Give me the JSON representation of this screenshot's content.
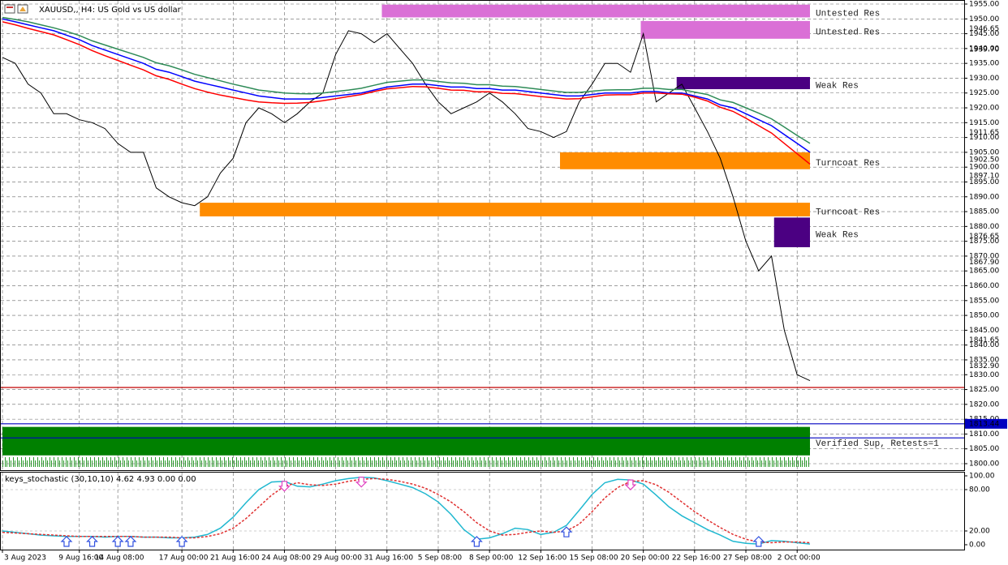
{
  "chart_data": [
    {
      "type": "line",
      "title": "XAUUSD,, H4:  US Gold vs US dollar",
      "categories": [
        "3 Aug 2023",
        null,
        null,
        null,
        null,
        null,
        "9 Aug 16:00",
        null,
        null,
        "14 Aug 08:00",
        null,
        null,
        null,
        null,
        "17 Aug 00:00",
        null,
        null,
        null,
        "21 Aug 16:00",
        null,
        null,
        null,
        "24 Aug 08:00",
        null,
        null,
        null,
        "29 Aug 00:00",
        null,
        null,
        null,
        "31 Aug 16:00",
        null,
        null,
        null,
        "5 Sep 08:00",
        null,
        null,
        null,
        "8 Sep 00:00",
        null,
        null,
        null,
        "12 Sep 16:00",
        null,
        null,
        null,
        "15 Sep 08:00",
        null,
        null,
        null,
        "20 Sep 00:00",
        null,
        null,
        null,
        "22 Sep 16:00",
        null,
        null,
        null,
        "27 Sep 08:00",
        null,
        null,
        null,
        "2 Oct 00:00",
        null
      ],
      "series": [
        {
          "color": "#000000",
          "values": [
            1937,
            1935,
            1928,
            1925,
            1918,
            1918,
            1916,
            1915,
            1913,
            1908,
            1905,
            1905,
            1893,
            1890,
            1888,
            1887,
            1890,
            1898,
            1903,
            1915,
            1920,
            1918,
            1915,
            1918,
            1922,
            1925,
            1938,
            1946,
            1945,
            1942,
            1945,
            1940,
            1935,
            1928,
            1922,
            1918,
            1920,
            1922,
            1925,
            1922,
            1918,
            1913,
            1912,
            1910,
            1912,
            1922,
            1928,
            1935,
            1935,
            1932,
            1945,
            1922,
            1925,
            1928,
            1920,
            1912,
            1903,
            1890,
            1875,
            1865,
            1870,
            1845,
            1830,
            1828
          ]
        },
        {
          "color": "#2e8b57",
          "values": [
            1950.5,
            1949.8,
            1949,
            1948,
            1947,
            1945.8,
            1944.4,
            1942.6,
            1941.2,
            1939.8,
            1938.4,
            1937,
            1935.2,
            1934.2,
            1932.8,
            1931.3,
            1930.2,
            1929.1,
            1928,
            1927,
            1926,
            1925.5,
            1925,
            1924.8,
            1924.7,
            1925,
            1925.5,
            1926,
            1926.6,
            1927.6,
            1928.6,
            1929,
            1929.4,
            1929.4,
            1928.9,
            1928.4,
            1928.3,
            1927.8,
            1927.8,
            1927.3,
            1927.2,
            1926.7,
            1926.2,
            1925.7,
            1925.2,
            1925.2,
            1925.6,
            1926,
            1926.1,
            1926.1,
            1926.6,
            1926.6,
            1926.2,
            1926.2,
            1925.3,
            1924.5,
            1922.7,
            1921.8,
            1920,
            1918.2,
            1916.3,
            1913.5,
            1910.7,
            1908
          ]
        },
        {
          "color": "#0000ff",
          "values": [
            1950,
            1949,
            1948,
            1947,
            1946,
            1944.5,
            1943,
            1941,
            1939.5,
            1938,
            1936.5,
            1935,
            1933,
            1932,
            1930.5,
            1929,
            1928,
            1927,
            1926,
            1925,
            1924,
            1923.5,
            1923,
            1923,
            1923,
            1923.5,
            1924,
            1924.5,
            1925,
            1926,
            1927,
            1927.5,
            1928,
            1928,
            1927.5,
            1927,
            1927,
            1926.5,
            1926.5,
            1926,
            1926,
            1925.5,
            1925,
            1924.5,
            1924,
            1924,
            1924.5,
            1925,
            1925,
            1925,
            1925.5,
            1925.5,
            1925,
            1925,
            1924,
            1923,
            1921,
            1920,
            1918,
            1916,
            1914,
            1911,
            1908,
            1905
          ]
        },
        {
          "color": "#ff0000",
          "values": [
            1949,
            1948,
            1946.8,
            1945.7,
            1944.6,
            1943,
            1941.3,
            1939.3,
            1937.6,
            1936,
            1934.4,
            1932.8,
            1930.8,
            1929.6,
            1928,
            1926.5,
            1925.3,
            1924.3,
            1923.5,
            1922.7,
            1922,
            1921.7,
            1921.5,
            1921.6,
            1921.8,
            1922.4,
            1923.1,
            1923.8,
            1924.5,
            1925.5,
            1926.4,
            1926.8,
            1927.2,
            1927.1,
            1926.6,
            1926,
            1925.9,
            1925.4,
            1925.4,
            1924.9,
            1924.8,
            1924.3,
            1923.8,
            1923.4,
            1923,
            1923.1,
            1923.7,
            1924.3,
            1924.4,
            1924.4,
            1925,
            1925,
            1924.7,
            1924.6,
            1923.6,
            1922.3,
            1920.2,
            1918.8,
            1916.5,
            1914,
            1911.5,
            1908,
            1904.5,
            1901
          ]
        }
      ],
      "ylim": [
        1800,
        1955
      ],
      "yticks": [
        {
          "value": 1800,
          "label": "1800.00"
        },
        {
          "value": 1805,
          "label": "1805.00"
        },
        {
          "value": 1810,
          "label": "1810.00"
        },
        {
          "value": 1815,
          "label": "1815.00"
        },
        {
          "value": 1820,
          "label": "1820.00"
        },
        {
          "value": 1825,
          "label": "1825.00"
        },
        {
          "value": 1830,
          "label": "1830.00"
        },
        {
          "value": 1835,
          "label": "1835.00"
        },
        {
          "value": 1840,
          "label": "1840.00"
        },
        {
          "value": 1845,
          "label": "1845.00"
        },
        {
          "value": 1850,
          "label": "1850.00"
        },
        {
          "value": 1855,
          "label": "1855.00"
        },
        {
          "value": 1860,
          "label": "1860.00"
        },
        {
          "value": 1865,
          "label": "1865.00"
        },
        {
          "value": 1870,
          "label": "1870.00"
        },
        {
          "value": 1875,
          "label": "1875.00"
        },
        {
          "value": 1880,
          "label": "1880.00"
        },
        {
          "value": 1885,
          "label": "1885.00"
        },
        {
          "value": 1890,
          "label": "1890.00"
        },
        {
          "value": 1895,
          "label": "1895.00"
        },
        {
          "value": 1900,
          "label": "1900.00"
        },
        {
          "value": 1905,
          "label": "1905.00"
        },
        {
          "value": 1910,
          "label": "1910.00"
        },
        {
          "value": 1915,
          "label": "1915.00"
        },
        {
          "value": 1920,
          "label": "1920.00"
        },
        {
          "value": 1925,
          "label": "1925.00"
        },
        {
          "value": 1930,
          "label": "1930.00"
        },
        {
          "value": 1935,
          "label": "1935.00"
        },
        {
          "value": 1940,
          "label": "1940.00"
        },
        {
          "value": 1945,
          "label": "1945.00"
        },
        {
          "value": 1950,
          "label": "1950.00"
        },
        {
          "value": 1955,
          "label": "1955.00"
        }
      ],
      "marker_prices": [
        {
          "value": 1946.65,
          "label": "1946.65"
        },
        {
          "value": 1939.7,
          "label": "1939.70"
        },
        {
          "value": 1911.65,
          "label": "1911.65"
        },
        {
          "value": 1902.5,
          "label": "1902.50"
        },
        {
          "value": 1897.1,
          "label": "1897.10"
        },
        {
          "value": 1876.65,
          "label": "1876.65"
        },
        {
          "value": 1867.9,
          "label": "1867.90"
        },
        {
          "value": 1841.65,
          "label": "1841.65"
        },
        {
          "value": 1832.9,
          "label": "1832.90"
        }
      ],
      "zones": [
        {
          "label": "Untested Res",
          "start": 29.6,
          "high": 1954.8,
          "low": 1950.5,
          "color": "#da70d6"
        },
        {
          "label": "Untested Res",
          "start": 49.8,
          "high": 1949.3,
          "low": 1943.3,
          "color": "#da70d6"
        },
        {
          "label": "Weak Res",
          "start": 52.6,
          "high": 1930.4,
          "low": 1926.3,
          "color": "#4b0082"
        },
        {
          "label": "Turncoat Res",
          "start": 43.5,
          "high": 1905,
          "low": 1899.3,
          "color": "#ff8c00"
        },
        {
          "label": "Turncoat Res",
          "start": 15.4,
          "high": 1888,
          "low": 1883.4,
          "color": "#ff8c00"
        },
        {
          "label": "Weak Res",
          "start": 60.2,
          "high": 1883,
          "low": 1873,
          "color": "#4b0082"
        },
        {
          "label": "Verified Sup, Retests=1",
          "start": 0,
          "high": 1812.4,
          "low": 1802.8,
          "color": "#008000"
        }
      ],
      "levels": [
        {
          "value": 1825.7,
          "color": "#c00000"
        },
        {
          "value": {
            "value": 1813.44,
            "label": "1813.44"
          },
          "color": "#0000c0"
        },
        {
          "value": 1808.7,
          "color": "#0000c0"
        }
      ],
      "grid": true
    },
    {
      "type": "line",
      "title": "keys_stochastic (30,10,10) 4.62 4.93 0.00 0.00",
      "series": [
        {
          "color": "#20b8d0",
          "style": "solid",
          "values": [
            20,
            18,
            16,
            14,
            13,
            12,
            12,
            12,
            11,
            12,
            12,
            11,
            11,
            10,
            10,
            11,
            15,
            24,
            40,
            61,
            80,
            91,
            92,
            85,
            84,
            88,
            93,
            96,
            98,
            97,
            93,
            88,
            83,
            74,
            62,
            44,
            22,
            8,
            10,
            16,
            24,
            22,
            15,
            18,
            28,
            50,
            73,
            90,
            95,
            94,
            88,
            72,
            55,
            42,
            32,
            22,
            14,
            5,
            2,
            1,
            6,
            5,
            3,
            1
          ]
        },
        {
          "color": "#e03030",
          "style": "dashed",
          "values": [
            18,
            17,
            16,
            15,
            14,
            13,
            12,
            12,
            12,
            12,
            12,
            11,
            11,
            11,
            10,
            10,
            12,
            16,
            24,
            38,
            55,
            72,
            85,
            90,
            87,
            86,
            88,
            92,
            95,
            96,
            95,
            92,
            88,
            82,
            73,
            62,
            48,
            32,
            20,
            14,
            15,
            18,
            20,
            18,
            20,
            30,
            48,
            68,
            83,
            92,
            93,
            87,
            76,
            62,
            48,
            36,
            25,
            15,
            8,
            4,
            3,
            4,
            4,
            3
          ]
        }
      ],
      "buy_signals": [
        5,
        7,
        9,
        10,
        14,
        37,
        44,
        59
      ],
      "sell_signals": [
        22,
        28,
        49
      ],
      "ylim": [
        0,
        100
      ],
      "yticks": [
        {
          "value": 0,
          "label": "0.00"
        },
        {
          "value": 20,
          "label": "20.00"
        },
        {
          "value": 80,
          "label": "80.00"
        },
        {
          "value": 100,
          "label": "100.00"
        }
      ],
      "grid": true
    }
  ]
}
